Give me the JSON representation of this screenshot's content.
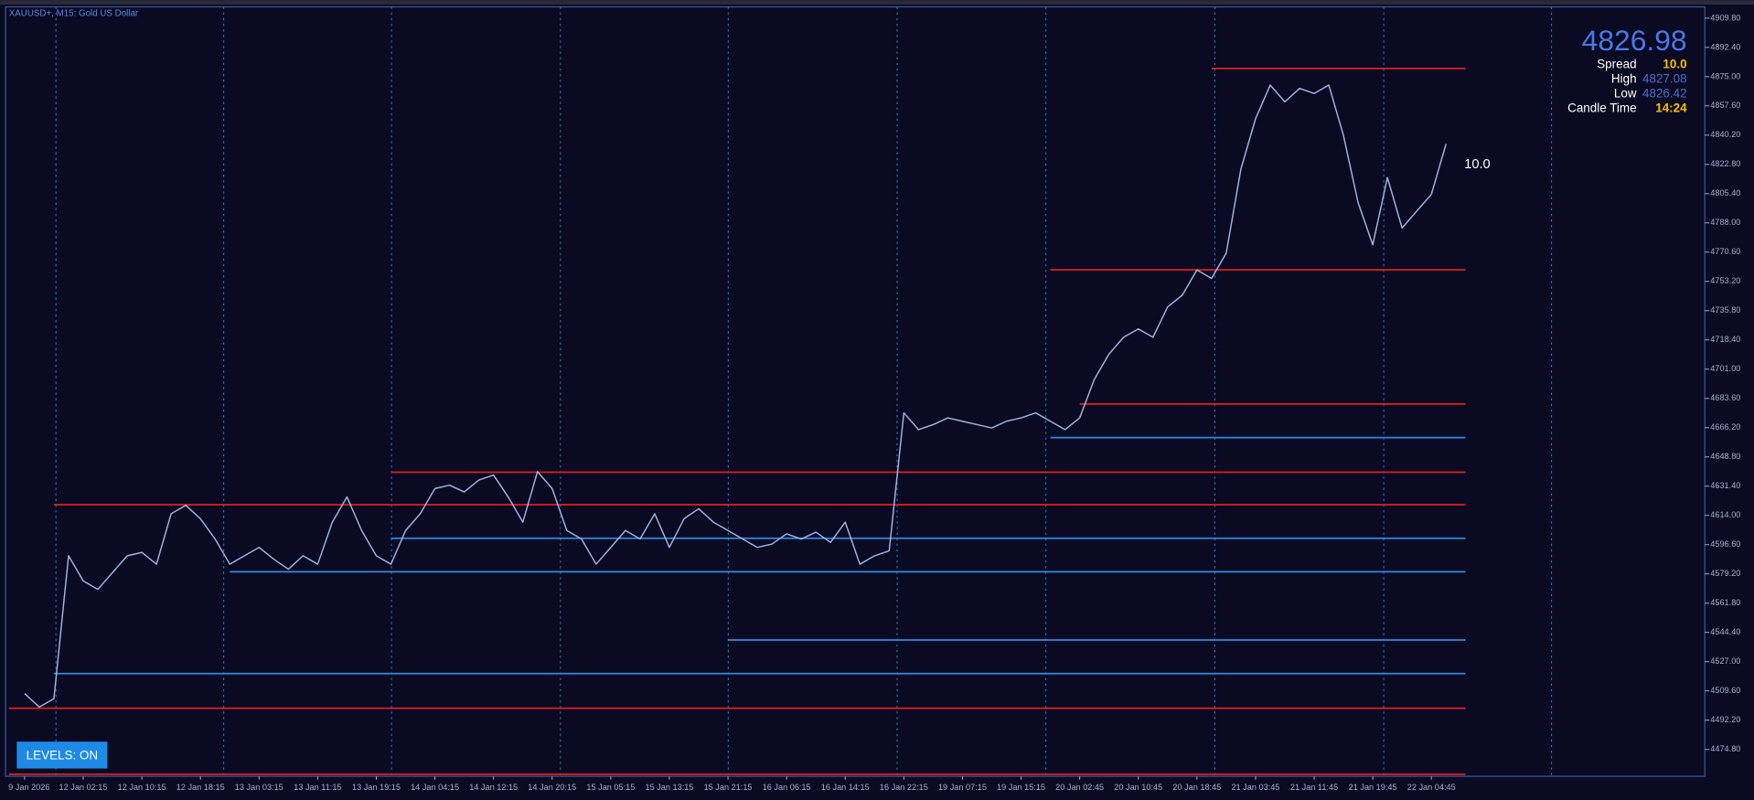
{
  "chart_data": {
    "type": "line",
    "title": "XAUUSD+, M15:  Gold US Dollar",
    "categories": [
      "9 Jan 2026",
      null,
      null,
      null,
      "12 Jan 02:15",
      null,
      null,
      null,
      "12 Jan 10:15",
      null,
      null,
      null,
      "12 Jan 18:15",
      null,
      null,
      null,
      "13 Jan 03:15",
      null,
      null,
      null,
      "13 Jan 11:15",
      null,
      null,
      null,
      "13 Jan 19:15",
      null,
      null,
      null,
      "14 Jan 04:15",
      null,
      null,
      null,
      "14 Jan 12:15",
      null,
      null,
      null,
      "14 Jan 20:15",
      null,
      null,
      null,
      "15 Jan 05:15",
      null,
      null,
      null,
      "15 Jan 13:15",
      null,
      null,
      null,
      "15 Jan 21:15",
      null,
      null,
      null,
      "16 Jan 06:15",
      null,
      null,
      null,
      "16 Jan 14:15",
      null,
      null,
      null,
      "16 Jan 22:15",
      null,
      null,
      null,
      "19 Jan 07:15",
      null,
      null,
      null,
      "19 Jan 15:15",
      null,
      null,
      null,
      "20 Jan 02:45",
      null,
      null,
      null,
      "20 Jan 10:45",
      null,
      null,
      null,
      "20 Jan 18:45",
      null,
      null,
      null,
      "21 Jan 03:45",
      null,
      null,
      null,
      "21 Jan 11:45",
      null,
      null,
      null,
      "21 Jan 19:45",
      null,
      null,
      null,
      "22 Jan 04:45",
      null
    ],
    "values": [
      4508,
      4500,
      4505,
      4590,
      4575,
      4570,
      4580,
      4590,
      4592,
      4585,
      4615,
      4620,
      4612,
      4600,
      4585,
      4590,
      4595,
      4588,
      4582,
      4590,
      4585,
      4610,
      4625,
      4605,
      4590,
      4585,
      4605,
      4615,
      4630,
      4632,
      4628,
      4635,
      4638,
      4625,
      4610,
      4640,
      4630,
      4605,
      4600,
      4585,
      4595,
      4605,
      4600,
      4615,
      4595,
      4612,
      4618,
      4610,
      4605,
      4600,
      4595,
      4597,
      4603,
      4600,
      4604,
      4598,
      4610,
      4585,
      4590,
      4593,
      4675,
      4665,
      4668,
      4672,
      4670,
      4668,
      4666,
      4670,
      4672,
      4675,
      4670,
      4665,
      4672,
      4695,
      4710,
      4720,
      4725,
      4720,
      4738,
      4745,
      4760,
      4755,
      4770,
      4820,
      4850,
      4870,
      4860,
      4868,
      4865,
      4870,
      4840,
      4800,
      4775,
      4815,
      4785,
      4795,
      4805,
      4835
    ],
    "color": "#9fb4e0",
    "levels": [
      {
        "value": 4879.9,
        "color": "#e02020",
        "from": 81
      },
      {
        "value": 4760.1,
        "color": "#e02020",
        "from": 70
      },
      {
        "value": 4680.3,
        "color": "#e02020",
        "from": 72
      },
      {
        "value": 4639.7,
        "color": "#e02020",
        "from": 25
      },
      {
        "value": 4620.4,
        "color": "#e02020",
        "from": 2
      },
      {
        "value": 4499.3,
        "color": "#e02020",
        "from": 0
      },
      {
        "value": 4460.0,
        "color": "#e02020",
        "from": 0
      },
      {
        "value": 4660.3,
        "color": "#2f8ae0",
        "from": 70
      },
      {
        "value": 4600.4,
        "color": "#2f8ae0",
        "from": 25
      },
      {
        "value": 4580.5,
        "color": "#2f8ae0",
        "from": 14
      },
      {
        "value": 4539.9,
        "color": "#2f8ae0",
        "from": 48
      },
      {
        "value": 4519.9,
        "color": "#2f8ae0",
        "from": 2
      }
    ],
    "ylim": [
      4458.8,
      4916.5
    ],
    "yticks": [
      {
        "value": 4909.8,
        "label": "4909.80"
      },
      {
        "value": 4892.4,
        "label": "4892.40"
      },
      {
        "value": 4875.0,
        "label": "4875.00"
      },
      {
        "value": 4857.6,
        "label": "4857.60"
      },
      {
        "value": 4840.2,
        "label": "4840.20"
      },
      {
        "value": 4822.8,
        "label": "4822.80"
      },
      {
        "value": 4805.4,
        "label": "4805.40"
      },
      {
        "value": 4788.0,
        "label": "4788.00"
      },
      {
        "value": 4770.6,
        "label": "4770.60"
      },
      {
        "value": 4753.2,
        "label": "4753.20"
      },
      {
        "value": 4735.8,
        "label": "4735.80"
      },
      {
        "value": 4718.4,
        "label": "4718.40"
      },
      {
        "value": 4701.0,
        "label": "4701.00"
      },
      {
        "value": 4683.6,
        "label": "4683.60"
      },
      {
        "value": 4666.2,
        "label": "4666.20"
      },
      {
        "value": 4648.8,
        "label": "4648.80"
      },
      {
        "value": 4631.4,
        "label": "4631.40"
      },
      {
        "value": 4614.0,
        "label": "4614.00"
      },
      {
        "value": 4596.6,
        "label": "4596.60"
      },
      {
        "value": 4579.2,
        "label": "4579.20"
      },
      {
        "value": 4561.8,
        "label": "4561.80"
      },
      {
        "value": 4544.4,
        "label": "4544.40"
      },
      {
        "value": 4527.0,
        "label": "4527.00"
      },
      {
        "value": 4509.6,
        "label": "4509.60"
      },
      {
        "value": 4492.2,
        "label": "4492.20"
      },
      {
        "value": 4474.8,
        "label": "4474.80"
      }
    ],
    "grid": false
  },
  "panel": {
    "price": "4826.98",
    "rows": [
      {
        "label": "Spread",
        "value": "10.0"
      },
      {
        "label": "High",
        "value": "4827.08"
      },
      {
        "label": "Low",
        "value": "4826.42"
      },
      {
        "label": "Candle Time",
        "value": "14:24"
      }
    ]
  },
  "button": "LEVELS: ON"
}
